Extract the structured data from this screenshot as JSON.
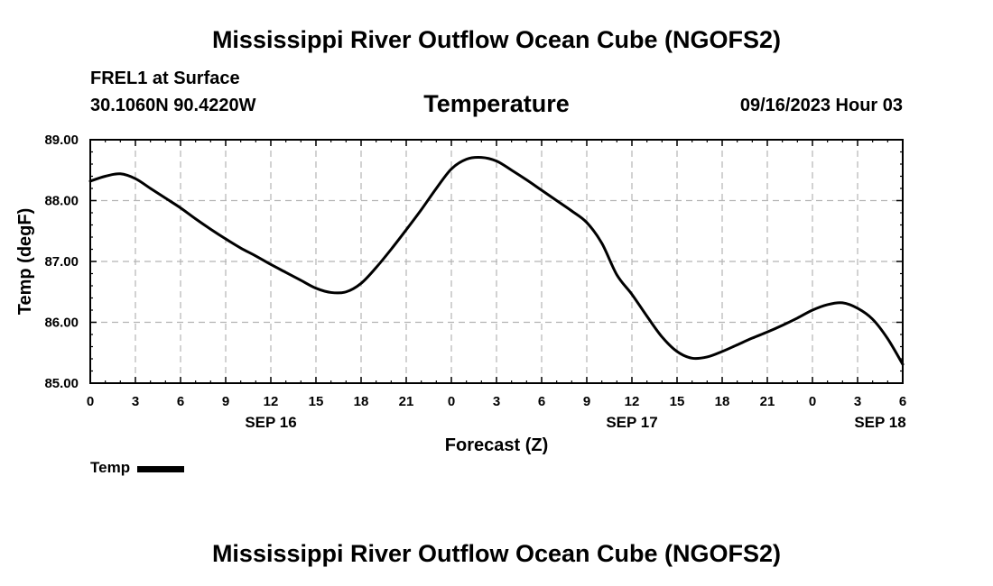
{
  "title": "Mississippi River Outflow Ocean Cube (NGOFS2)",
  "title_repeat": "Mississippi River Outflow Ocean Cube (NGOFS2)",
  "header": {
    "station": "FREL1 at Surface",
    "coords": "30.1060N  90.4220W",
    "variable": "Temperature",
    "datetime": "09/16/2023 Hour 03"
  },
  "legend": {
    "label": "Temp"
  },
  "chart_data": {
    "type": "line",
    "title": "Temperature",
    "xlabel": "Forecast (Z)",
    "ylabel": "Temp (degF)",
    "ylim": [
      85.0,
      89.0
    ],
    "xlim_hours": [
      0,
      54
    ],
    "yticks": [
      85.0,
      86.0,
      87.0,
      88.0,
      89.0
    ],
    "ytick_labels": [
      "85.00",
      "86.00",
      "87.00",
      "88.00",
      "89.00"
    ],
    "xticks": [
      {
        "h": 0,
        "label": "0"
      },
      {
        "h": 3,
        "label": "3"
      },
      {
        "h": 6,
        "label": "6"
      },
      {
        "h": 9,
        "label": "9"
      },
      {
        "h": 12,
        "label": "12"
      },
      {
        "h": 15,
        "label": "15"
      },
      {
        "h": 18,
        "label": "18"
      },
      {
        "h": 21,
        "label": "21"
      },
      {
        "h": 24,
        "label": "0"
      },
      {
        "h": 27,
        "label": "3"
      },
      {
        "h": 30,
        "label": "6"
      },
      {
        "h": 33,
        "label": "9"
      },
      {
        "h": 36,
        "label": "12"
      },
      {
        "h": 39,
        "label": "15"
      },
      {
        "h": 42,
        "label": "18"
      },
      {
        "h": 45,
        "label": "21"
      },
      {
        "h": 48,
        "label": "0"
      },
      {
        "h": 51,
        "label": "3"
      },
      {
        "h": 54,
        "label": "6"
      }
    ],
    "day_labels": [
      {
        "h": 12,
        "label": "SEP 16"
      },
      {
        "h": 36,
        "label": "SEP 17"
      },
      {
        "h": 52.5,
        "label": "SEP 18"
      }
    ],
    "grid": true,
    "series": [
      {
        "name": "Temp",
        "x": [
          0,
          1,
          2,
          3,
          4,
          5,
          6,
          7,
          8,
          9,
          10,
          11,
          12,
          13,
          14,
          15,
          16,
          17,
          18,
          19,
          20,
          21,
          22,
          23,
          24,
          25,
          26,
          27,
          28,
          29,
          30,
          31,
          32,
          33,
          34,
          35,
          36,
          37,
          38,
          39,
          40,
          41,
          42,
          43,
          44,
          45,
          46,
          47,
          48,
          49,
          50,
          51,
          52,
          53,
          54
        ],
        "values": [
          88.32,
          88.4,
          88.44,
          88.36,
          88.2,
          88.04,
          87.88,
          87.7,
          87.53,
          87.37,
          87.22,
          87.09,
          86.95,
          86.82,
          86.69,
          86.56,
          86.49,
          86.5,
          86.64,
          86.9,
          87.2,
          87.52,
          87.85,
          88.2,
          88.52,
          88.68,
          88.71,
          88.65,
          88.5,
          88.34,
          88.17,
          88.0,
          87.83,
          87.64,
          87.3,
          86.78,
          86.46,
          86.1,
          85.76,
          85.52,
          85.41,
          85.43,
          85.52,
          85.63,
          85.74,
          85.84,
          85.95,
          86.07,
          86.2,
          86.29,
          86.32,
          86.23,
          86.05,
          85.73,
          85.31
        ]
      }
    ]
  }
}
